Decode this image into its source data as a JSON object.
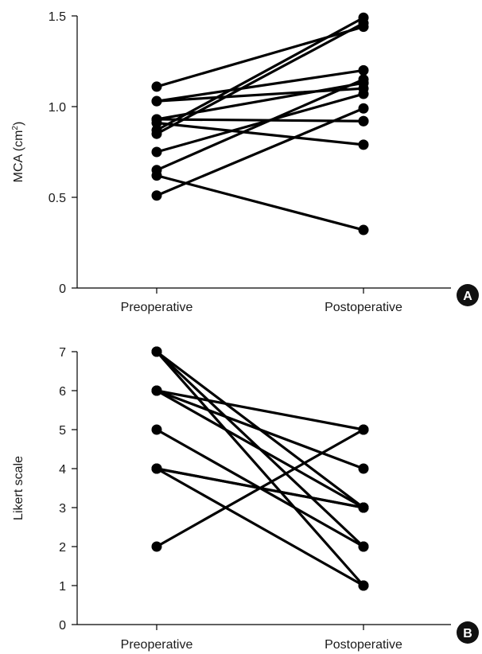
{
  "chart_data": [
    {
      "panel": "A",
      "type": "line",
      "ylabel": "MCA (cm",
      "ylabel_sup": "2",
      "ylabel_close": ")",
      "categories": [
        "Preoperative",
        "Postoperative"
      ],
      "ylim": [
        0,
        1.5
      ],
      "yticks": [
        0,
        0.5,
        1.0,
        1.5
      ],
      "ytick_labels": [
        "0",
        "0.5",
        "1.0",
        "1.5"
      ],
      "series": [
        {
          "values": [
            1.11,
            1.44
          ]
        },
        {
          "values": [
            1.03,
            1.2
          ]
        },
        {
          "values": [
            1.03,
            1.1
          ]
        },
        {
          "values": [
            0.93,
            1.13
          ]
        },
        {
          "values": [
            0.93,
            0.92
          ]
        },
        {
          "values": [
            0.91,
            0.79
          ]
        },
        {
          "values": [
            0.87,
            1.49
          ]
        },
        {
          "values": [
            0.85,
            1.46
          ]
        },
        {
          "values": [
            0.75,
            1.07
          ]
        },
        {
          "values": [
            0.65,
            1.15
          ]
        },
        {
          "values": [
            0.62,
            0.32
          ]
        },
        {
          "values": [
            0.51,
            0.99
          ]
        }
      ],
      "extra_points": [
        {
          "category": "Postoperative",
          "value": 1.13
        },
        {
          "category": "Postoperative",
          "value": 0.92
        }
      ]
    },
    {
      "panel": "B",
      "type": "line",
      "ylabel": "Likert scale",
      "categories": [
        "Preoperative",
        "Postoperative"
      ],
      "ylim": [
        0,
        7
      ],
      "yticks": [
        0,
        1,
        2,
        3,
        4,
        5,
        6,
        7
      ],
      "ytick_labels": [
        "0",
        "1",
        "2",
        "3",
        "4",
        "5",
        "6",
        "7"
      ],
      "series": [
        {
          "values": [
            7,
            1
          ]
        },
        {
          "values": [
            7,
            2
          ]
        },
        {
          "values": [
            7,
            3
          ]
        },
        {
          "values": [
            6,
            5
          ]
        },
        {
          "values": [
            6,
            3
          ]
        },
        {
          "values": [
            6,
            4
          ]
        },
        {
          "values": [
            5,
            2
          ]
        },
        {
          "values": [
            4,
            3
          ]
        },
        {
          "values": [
            4,
            3
          ]
        },
        {
          "values": [
            4,
            1
          ]
        },
        {
          "values": [
            2,
            5
          ]
        }
      ],
      "extra_points": []
    }
  ],
  "badges": [
    "A",
    "B"
  ]
}
